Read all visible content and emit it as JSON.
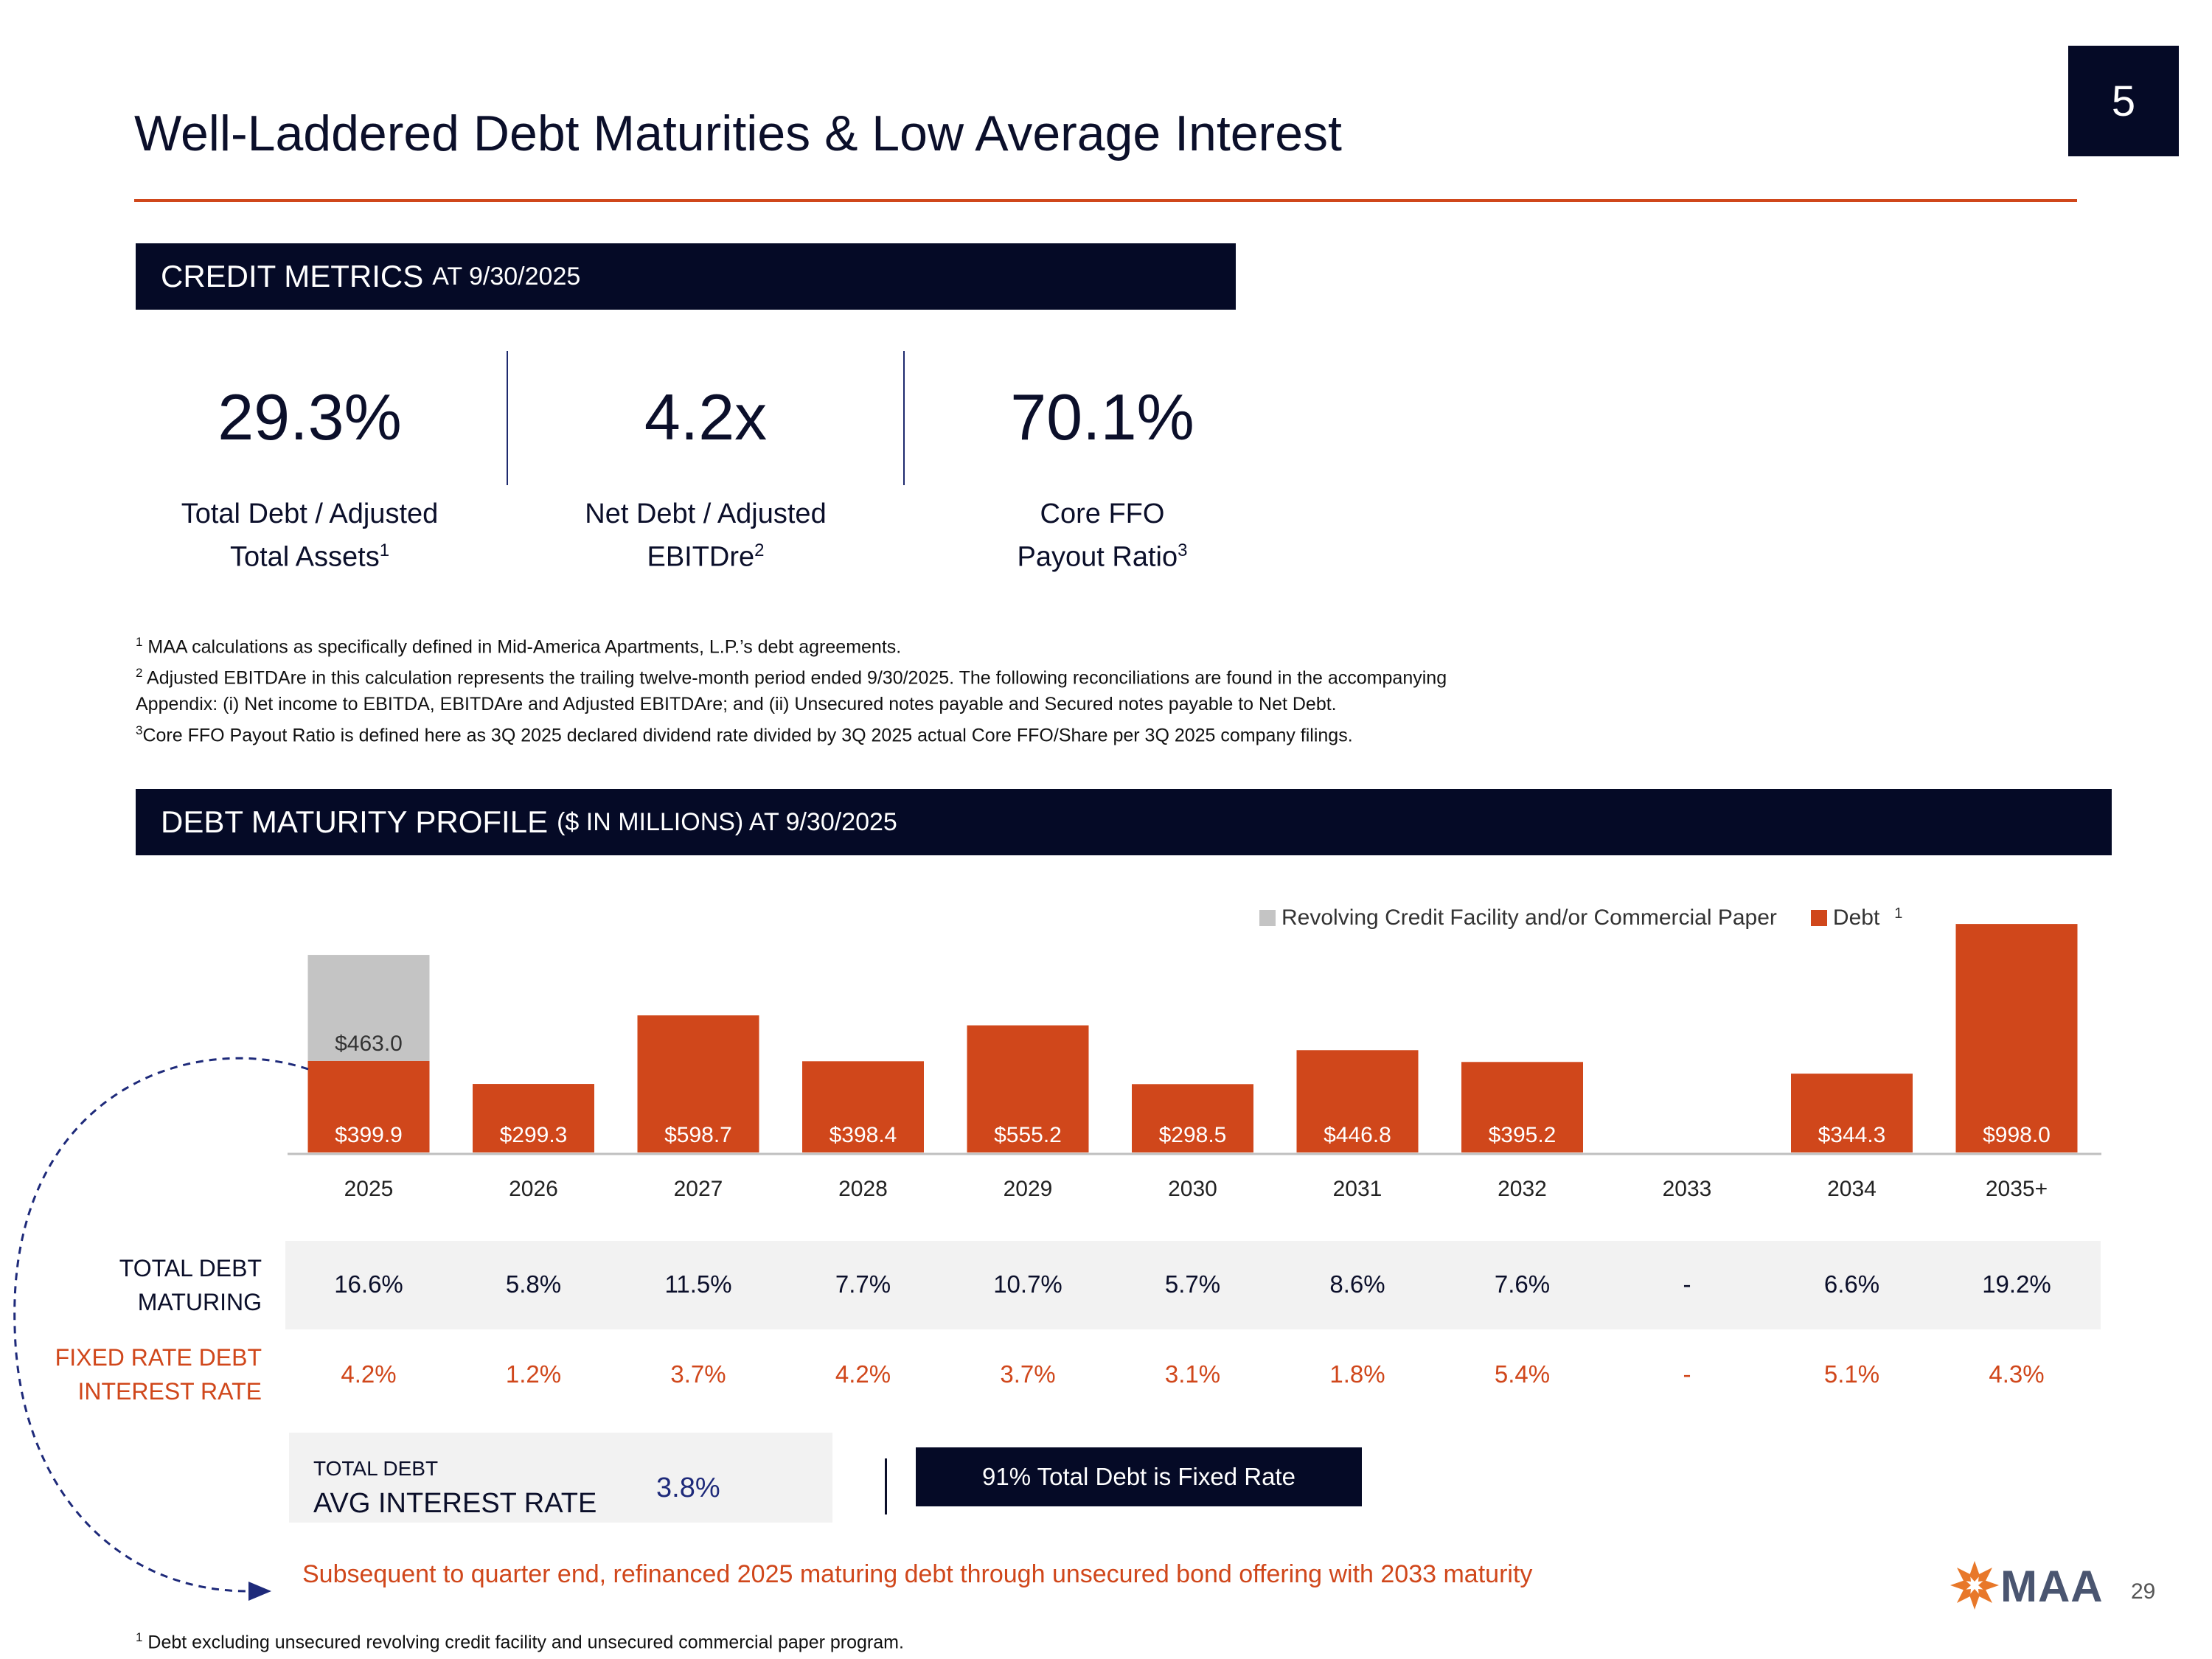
{
  "page_badge": "5",
  "title": "Well-Laddered Debt Maturities & Low Average Interest",
  "credit_metrics": {
    "header_main": "CREDIT METRICS",
    "header_sub": "AT 9/30/2025",
    "items": [
      {
        "value": "29.3%",
        "label_line1": "Total Debt / Adjusted",
        "label_line2": "Total Assets",
        "sup": "1"
      },
      {
        "value": "4.2x",
        "label_line1": "Net Debt / Adjusted",
        "label_line2": "EBITDre",
        "sup": "2"
      },
      {
        "value": "70.1%",
        "label_line1": "Core FFO",
        "label_line2": "Payout Ratio",
        "sup": "3"
      }
    ]
  },
  "footnotes": [
    {
      "sup": "1",
      "text": " MAA calculations as specifically defined in Mid-America Apartments, L.P.’s debt agreements."
    },
    {
      "sup": "2",
      "text": " Adjusted EBITDAre in this calculation represents the trailing twelve-month period ended 9/30/2025. The following reconciliations are found in the accompanying"
    },
    {
      "sup": "",
      "text": "Appendix: (i) Net income to EBITDA, EBITDAre and Adjusted EBITDAre; and (ii) Unsecured notes payable and Secured notes payable to Net Debt."
    },
    {
      "sup": "3",
      "text": "Core FFO Payout Ratio is defined here as 3Q 2025 declared dividend rate divided by 3Q 2025 actual Core FFO/Share per 3Q 2025 company filings."
    }
  ],
  "debt_profile": {
    "header_main": "DEBT MATURITY PROFILE",
    "header_sub": "($ IN MILLIONS) AT 9/30/2025"
  },
  "chart_data": {
    "type": "bar",
    "stacked": true,
    "categories": [
      "2025",
      "2026",
      "2027",
      "2028",
      "2029",
      "2030",
      "2031",
      "2032",
      "2033",
      "2034",
      "2035+"
    ],
    "series": [
      {
        "name": "Debt",
        "color": "#d0471b",
        "values": [
          399.9,
          299.3,
          598.7,
          398.4,
          555.2,
          298.5,
          446.8,
          395.2,
          0,
          344.3,
          998.0
        ]
      },
      {
        "name": "Revolving Credit Facility and/or Commercial Paper",
        "color": "#c4c4c4",
        "values": [
          463.0,
          0,
          0,
          0,
          0,
          0,
          0,
          0,
          0,
          0,
          0
        ]
      }
    ],
    "debt_labels": [
      "$399.9",
      "$299.3",
      "$598.7",
      "$398.4",
      "$555.2",
      "$298.5",
      "$446.8",
      "$395.2",
      "",
      "$344.3",
      "$998.0"
    ],
    "revolver_label": "$463.0",
    "legend_debt_sup": "1",
    "legend_position": "top-right",
    "ylim": [
      0,
      1000
    ],
    "grid": false
  },
  "table": {
    "row1_label_line1": "TOTAL DEBT",
    "row1_label_line2": "MATURING",
    "row1_values": [
      "16.6%",
      "5.8%",
      "11.5%",
      "7.7%",
      "10.7%",
      "5.7%",
      "8.6%",
      "7.6%",
      "-",
      "6.6%",
      "19.2%"
    ],
    "row2_label_line1": "FIXED RATE DEBT",
    "row2_label_line2": "INTEREST RATE",
    "row2_values": [
      "4.2%",
      "1.2%",
      "3.7%",
      "4.2%",
      "3.7%",
      "3.1%",
      "1.8%",
      "5.4%",
      "-",
      "5.1%",
      "4.3%"
    ]
  },
  "avg_rate": {
    "label_small": "TOTAL DEBT",
    "label_big": "AVG INTEREST RATE",
    "value": "3.8%"
  },
  "fixed_rate_note": "91% Total Debt is Fixed Rate",
  "refinance_note": "Subsequent to quarter end, refinanced 2025 maturing debt through unsecured bond offering with 2033 maturity",
  "bottom_footnote": {
    "sup": "1",
    "text": " Debt excluding unsecured revolving credit facility and unsecured commercial paper program."
  },
  "logo_text": "MAA",
  "page_number": "29",
  "colors": {
    "navy": "#050a26",
    "orange": "#d0471b",
    "gray": "#c4c4c4",
    "rate_blue": "#1e2a7a"
  }
}
